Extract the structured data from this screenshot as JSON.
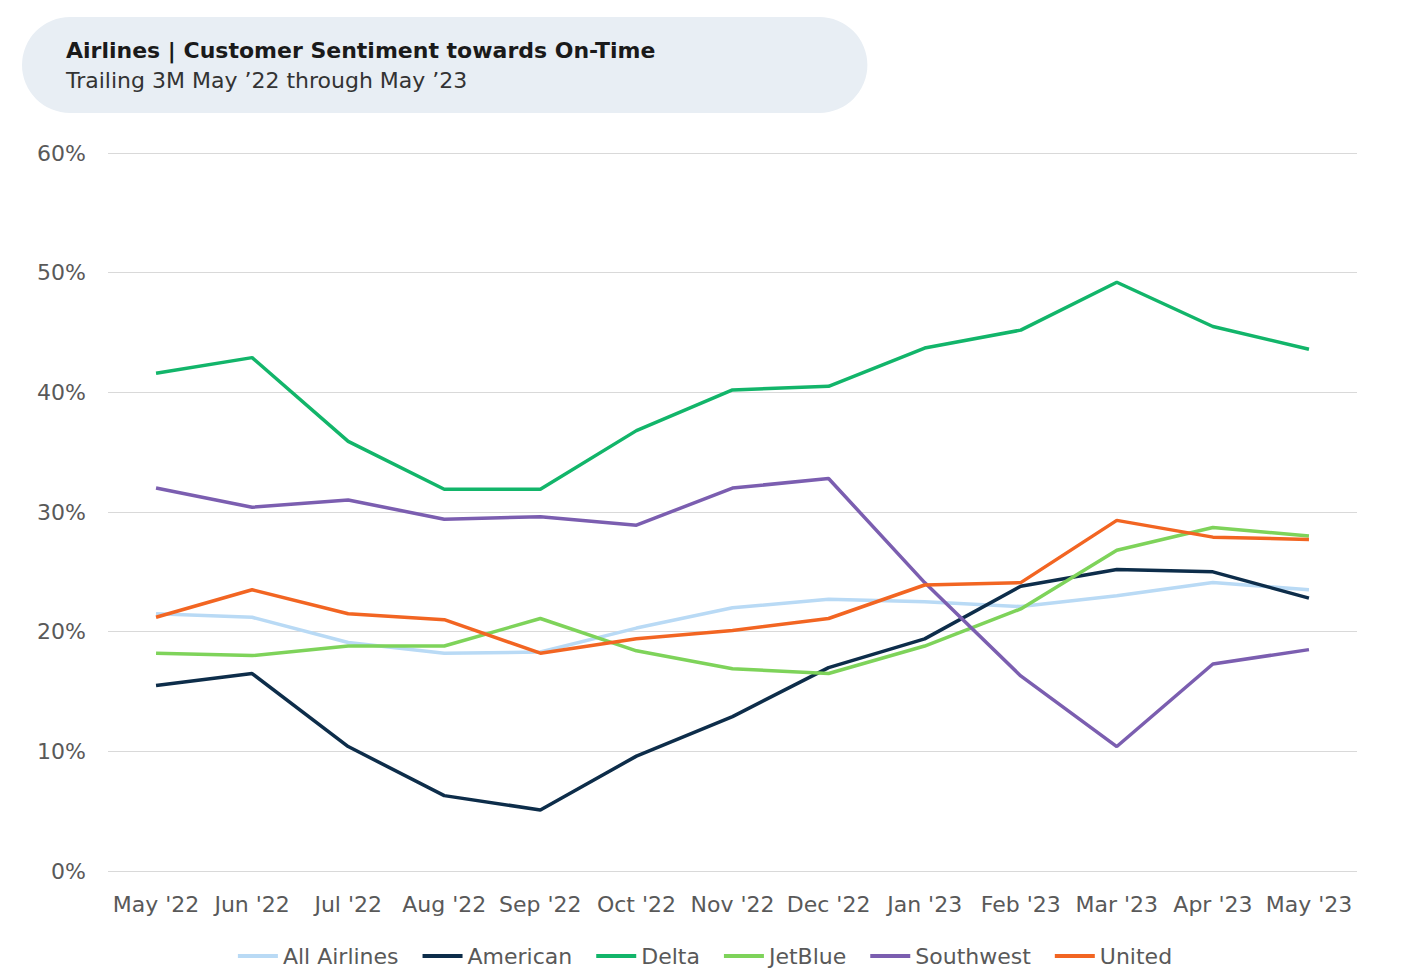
{
  "chart_data": {
    "type": "line",
    "title": "Airlines | Customer Sentiment towards On-Time",
    "subtitle": "Trailing 3M May ’22 through May ’23",
    "categories": [
      "May '22",
      "Jun '22",
      "Jul '22",
      "Aug '22",
      "Sep '22",
      "Oct '22",
      "Nov '22",
      "Dec '22",
      "Jan '23",
      "Feb '23",
      "Mar '23",
      "Apr '23",
      "May '23"
    ],
    "series": [
      {
        "name": "All Airlines",
        "color": "#b9daf5",
        "values": [
          21.5,
          21.2,
          19.1,
          18.2,
          18.3,
          20.3,
          22.0,
          22.7,
          22.5,
          22.1,
          23.0,
          24.1,
          23.5
        ]
      },
      {
        "name": "American",
        "color": "#0d2d4a",
        "values": [
          15.5,
          16.5,
          10.4,
          6.3,
          5.1,
          9.6,
          12.9,
          17.0,
          19.4,
          23.8,
          25.2,
          25.0,
          22.8
        ]
      },
      {
        "name": "Delta",
        "color": "#12b56a",
        "values": [
          41.6,
          42.9,
          35.9,
          31.9,
          31.9,
          36.8,
          40.2,
          40.5,
          43.7,
          45.2,
          49.2,
          45.5,
          43.6
        ]
      },
      {
        "name": "JetBlue",
        "color": "#7ed35a",
        "values": [
          18.2,
          18.0,
          18.8,
          18.8,
          21.1,
          18.4,
          16.9,
          16.5,
          18.8,
          21.9,
          26.8,
          28.7,
          28.0
        ]
      },
      {
        "name": "Southwest",
        "color": "#7b5eb0",
        "values": [
          32.0,
          30.4,
          31.0,
          29.4,
          29.6,
          28.9,
          32.0,
          32.8,
          24.1,
          16.3,
          10.4,
          17.3,
          18.5
        ]
      },
      {
        "name": "United",
        "color": "#f26522",
        "values": [
          21.2,
          23.5,
          21.5,
          21.0,
          18.2,
          19.4,
          20.1,
          21.1,
          23.9,
          24.1,
          29.3,
          27.9,
          27.7
        ]
      }
    ],
    "ylim": [
      0,
      60
    ],
    "yticks": [
      {
        "value": 0,
        "label": "0%"
      },
      {
        "value": 10,
        "label": "10%"
      },
      {
        "value": 20,
        "label": "20%"
      },
      {
        "value": 30,
        "label": "30%"
      },
      {
        "value": 40,
        "label": "40%"
      },
      {
        "value": 50,
        "label": "50%"
      },
      {
        "value": 60,
        "label": "60%"
      }
    ],
    "grid": true,
    "legend": "bottom"
  }
}
